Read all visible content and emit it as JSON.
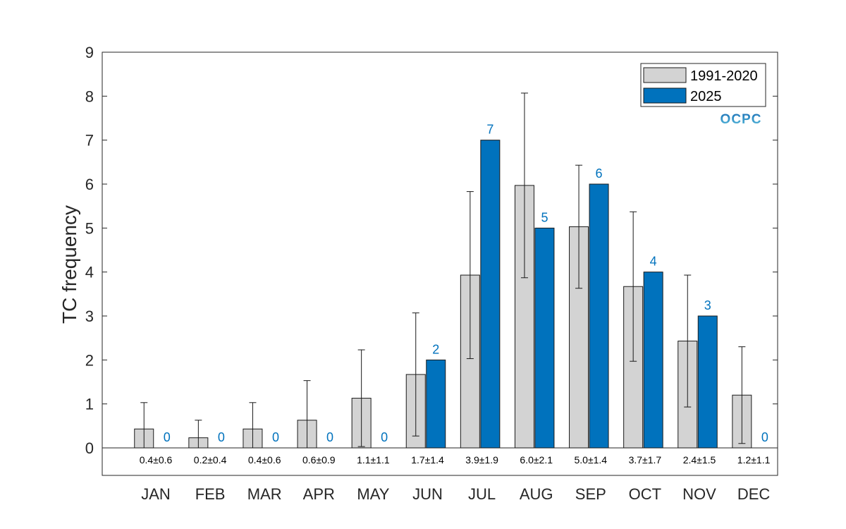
{
  "chart_data": {
    "type": "bar",
    "ylabel": "TC frequency",
    "ylim": [
      0,
      9
    ],
    "yticks": [
      "0",
      "1",
      "2",
      "3",
      "4",
      "5",
      "6",
      "7",
      "8",
      "9"
    ],
    "categories": [
      "JAN",
      "FEB",
      "MAR",
      "APR",
      "MAY",
      "JUN",
      "JUL",
      "AUG",
      "SEP",
      "OCT",
      "NOV",
      "DEC"
    ],
    "series": [
      {
        "name": "1991-2020",
        "color": "#d3d3d3",
        "values": [
          0.43,
          0.23,
          0.43,
          0.63,
          1.13,
          1.67,
          3.93,
          5.97,
          5.03,
          3.67,
          2.43,
          1.2
        ],
        "error": [
          0.6,
          0.4,
          0.6,
          0.9,
          1.1,
          1.4,
          1.9,
          2.1,
          1.4,
          1.7,
          1.5,
          1.1
        ]
      },
      {
        "name": "2025",
        "color": "#0072bd",
        "values": [
          0,
          0,
          0,
          0,
          0,
          2,
          7,
          5,
          6,
          4,
          3,
          0
        ],
        "labels": [
          "0",
          "0",
          "0",
          "0",
          "0",
          "2",
          "7",
          "5",
          "6",
          "4",
          "3",
          "0"
        ]
      }
    ],
    "climatology_labels": [
      "0.4±0.6",
      "0.2±0.4",
      "0.4±0.6",
      "0.6±0.9",
      "1.1±1.1",
      "1.7±1.4",
      "3.9±1.9",
      "6.0±2.1",
      "5.0±1.4",
      "3.7±1.7",
      "2.4±1.5",
      "1.2±1.1"
    ],
    "legend_position": "top-right",
    "grid": false,
    "value_label_color": "#0072bd"
  },
  "logo": {
    "text": "OCPC",
    "colors": [
      "#1a6fb5",
      "#5bc0de"
    ]
  }
}
